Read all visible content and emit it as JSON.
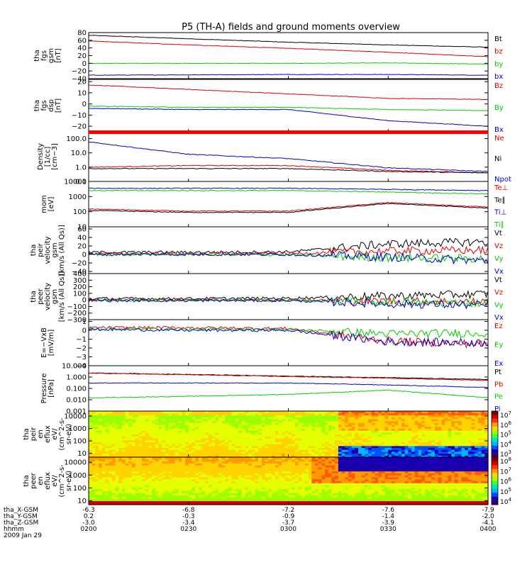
{
  "title": "P5 (TH-A) fields and ground moments overview",
  "colors": {
    "black": "#000000",
    "red": "#e00000",
    "green": "#00cc00",
    "blue": "#0000d0"
  },
  "chart_data": [
    {
      "type": "line",
      "ylabel": [
        "tha",
        "fgs",
        "gsm",
        "[nT]"
      ],
      "yticks": [
        "80",
        "60",
        "40",
        "20",
        "0",
        "−20",
        "−40"
      ],
      "ylim": [
        -40,
        80
      ],
      "legend": [
        "Bt",
        "bz",
        "by",
        "bx"
      ],
      "legend_colors": [
        "#000000",
        "#e00000",
        "#00cc00",
        "#0000d0"
      ],
      "series": [
        {
          "name": "Bt",
          "x": [
            "02:00",
            "02:30",
            "03:00",
            "03:30",
            "04:00"
          ],
          "values": [
            73,
            64,
            55,
            48,
            42
          ]
        },
        {
          "name": "bz",
          "x": [
            "02:00",
            "02:30",
            "03:00",
            "03:30",
            "04:00"
          ],
          "values": [
            58,
            48,
            39,
            29,
            17
          ]
        },
        {
          "name": "by",
          "x": [
            "02:00",
            "02:30",
            "03:00",
            "03:30",
            "04:00"
          ],
          "values": [
            0,
            0,
            0,
            1,
            -2
          ]
        },
        {
          "name": "bx",
          "x": [
            "02:00",
            "02:30",
            "03:00",
            "03:30",
            "04:00"
          ],
          "values": [
            -31,
            -30,
            -29,
            -29,
            -31
          ]
        }
      ]
    },
    {
      "type": "line",
      "ylabel": [
        "tha",
        "fgs",
        "dsp",
        "[nT]"
      ],
      "yticks": [
        "20",
        "10",
        "0",
        "−10",
        "−20"
      ],
      "ylim": [
        -25,
        22
      ],
      "legend": [
        "Bz",
        "By",
        "Bx"
      ],
      "legend_colors": [
        "#e00000",
        "#00cc00",
        "#0000d0"
      ],
      "series": [
        {
          "name": "Bz",
          "x": [
            "02:00",
            "02:30",
            "03:00",
            "03:30",
            "04:00"
          ],
          "values": [
            17,
            13,
            9,
            5,
            4
          ]
        },
        {
          "name": "By",
          "x": [
            "02:00",
            "02:30",
            "03:00",
            "03:30",
            "04:00"
          ],
          "values": [
            -2,
            -3,
            -3,
            -5,
            -6
          ]
        },
        {
          "name": "Bx",
          "x": [
            "02:00",
            "02:30",
            "03:00",
            "03:30",
            "04:00"
          ],
          "values": [
            -4,
            -5,
            -5,
            -15,
            -20
          ]
        }
      ]
    },
    {
      "type": "line",
      "ylabel": [
        "Density",
        "[1/cc]",
        "[cm−3]"
      ],
      "yticks": [
        "100.0",
        "10.0",
        "1.0",
        "0.1"
      ],
      "ylim": [
        0.1,
        300
      ],
      "yscale": "log",
      "legend": [
        "Ne",
        "Ni",
        "Npot"
      ],
      "legend_colors": [
        "#e00000",
        "#000000",
        "#0000d0"
      ],
      "series": [
        {
          "name": "Ne",
          "x": [
            "02:00",
            "02:30",
            "03:00",
            "03:30",
            "04:00"
          ],
          "values": [
            1.0,
            1.3,
            1.3,
            0.6,
            0.4
          ]
        },
        {
          "name": "Ni",
          "x": [
            "02:00",
            "02:30",
            "03:00",
            "03:30",
            "04:00"
          ],
          "values": [
            0.8,
            0.8,
            0.8,
            0.5,
            0.4
          ]
        },
        {
          "name": "Npot",
          "x": [
            "02:00",
            "02:30",
            "03:00",
            "03:30",
            "04:00"
          ],
          "values": [
            60,
            8,
            4,
            0.9,
            0.5
          ]
        }
      ]
    },
    {
      "type": "line",
      "ylabel": [
        "mom",
        "[eV]"
      ],
      "yticks": [
        "10000",
        "1000",
        "100",
        "10"
      ],
      "ylim": [
        10,
        10000
      ],
      "yscale": "log",
      "legend": [
        "Te⊥",
        "Te∥",
        "Ti⊥",
        "Ti∥"
      ],
      "legend_colors": [
        "#e00000",
        "#000000",
        "#0000d0",
        "#00cc00"
      ],
      "series": [
        {
          "name": "Te⊥",
          "x": [
            "02:00",
            "02:30",
            "03:00",
            "03:30",
            "04:00"
          ],
          "values": [
            150,
            110,
            110,
            400,
            200
          ]
        },
        {
          "name": "Te∥",
          "x": [
            "02:00",
            "02:30",
            "03:00",
            "03:30",
            "04:00"
          ],
          "values": [
            120,
            90,
            90,
            350,
            170
          ]
        },
        {
          "name": "Ti⊥",
          "x": [
            "02:00",
            "02:30",
            "03:00",
            "03:30",
            "04:00"
          ],
          "values": [
            3500,
            3500,
            3500,
            3000,
            2500
          ]
        },
        {
          "name": "Ti∥",
          "x": [
            "02:00",
            "02:30",
            "03:00",
            "03:30",
            "04:00"
          ],
          "values": [
            2500,
            2500,
            2500,
            2000,
            1500
          ]
        }
      ]
    },
    {
      "type": "line",
      "ylabel": [
        "tha",
        "peir",
        "velocity",
        "gsm",
        "[km/s (All Qs)]"
      ],
      "yticks": [
        "60",
        "40",
        "20",
        "0",
        "−20",
        "−40"
      ],
      "ylim": [
        -45,
        65
      ],
      "legend": [
        "Vt",
        "Vz",
        "Vy",
        "Vx"
      ],
      "legend_colors": [
        "#000000",
        "#e00000",
        "#00cc00",
        "#0000d0"
      ],
      "series": [
        {
          "name": "Vt",
          "x": [
            "02:00",
            "02:30",
            "03:00",
            "03:30",
            "04:00"
          ],
          "values": [
            5,
            5,
            6,
            25,
            30
          ]
        },
        {
          "name": "Vz",
          "x": [
            "02:00",
            "02:30",
            "03:00",
            "03:30",
            "04:00"
          ],
          "values": [
            2,
            2,
            2,
            8,
            10
          ]
        },
        {
          "name": "Vy",
          "x": [
            "02:00",
            "02:30",
            "03:00",
            "03:30",
            "04:00"
          ],
          "values": [
            0,
            0,
            -1,
            -8,
            -10
          ]
        },
        {
          "name": "Vx",
          "x": [
            "02:00",
            "02:30",
            "03:00",
            "03:30",
            "04:00"
          ],
          "values": [
            0,
            0,
            0,
            -6,
            -15
          ]
        }
      ]
    },
    {
      "type": "line",
      "ylabel": [
        "tha",
        "peer",
        "velocity",
        "gsm",
        "[km/s (All Qs)]"
      ],
      "yticks": [
        "400",
        "300",
        "200",
        "100",
        "0",
        "−100",
        "−200",
        "−300"
      ],
      "ylim": [
        -300,
        400
      ],
      "legend": [
        "Vt",
        "Vz",
        "Vy",
        "Vx"
      ],
      "legend_colors": [
        "#000000",
        "#e00000",
        "#00cc00",
        "#0000d0"
      ],
      "series": [
        {
          "name": "Vt",
          "x": [
            "02:00",
            "02:30",
            "03:00",
            "03:30",
            "04:00"
          ],
          "values": [
            20,
            20,
            25,
            60,
            90
          ]
        },
        {
          "name": "Vz",
          "x": [
            "02:00",
            "02:30",
            "03:00",
            "03:30",
            "04:00"
          ],
          "values": [
            0,
            0,
            0,
            -20,
            -30
          ]
        },
        {
          "name": "Vy",
          "x": [
            "02:00",
            "02:30",
            "03:00",
            "03:30",
            "04:00"
          ],
          "values": [
            -5,
            -5,
            -5,
            -40,
            -50
          ]
        },
        {
          "name": "Vx",
          "x": [
            "02:00",
            "02:30",
            "03:00",
            "03:30",
            "04:00"
          ],
          "values": [
            -10,
            -10,
            -10,
            -60,
            -80
          ]
        }
      ]
    },
    {
      "type": "line",
      "ylabel": [
        "E=−VxB",
        "[mV/m]"
      ],
      "yticks": [
        "1",
        "0",
        "−1",
        "−2",
        "−3",
        "−4"
      ],
      "ylim": [
        -4,
        1.2
      ],
      "legend": [
        "Ez",
        "Ey",
        "Ex"
      ],
      "legend_colors": [
        "#e00000",
        "#00cc00",
        "#0000d0"
      ],
      "series": [
        {
          "name": "Ez",
          "x": [
            "02:00",
            "02:30",
            "03:00",
            "03:30",
            "04:00"
          ],
          "values": [
            0.3,
            0.3,
            0.2,
            -1.2,
            -1.6
          ]
        },
        {
          "name": "Ey",
          "x": [
            "02:00",
            "02:30",
            "03:00",
            "03:30",
            "04:00"
          ],
          "values": [
            0.2,
            0.1,
            0.1,
            -0.4,
            -0.3
          ]
        },
        {
          "name": "Ex",
          "x": [
            "02:00",
            "02:30",
            "03:00",
            "03:30",
            "04:00"
          ],
          "values": [
            0.1,
            0.0,
            0.0,
            -1.3,
            -1.4
          ]
        }
      ]
    },
    {
      "type": "line",
      "ylabel": [
        "Pressure",
        "[nPa]"
      ],
      "yticks": [
        "10.000",
        "1.000",
        "0.100",
        "0.010",
        "0.001"
      ],
      "ylim": [
        0.001,
        10
      ],
      "yscale": "log",
      "legend": [
        "Pt",
        "Pb",
        "Pe",
        "Pi"
      ],
      "legend_colors": [
        "#000000",
        "#e00000",
        "#00cc00",
        "#0000d0"
      ],
      "series": [
        {
          "name": "Pt",
          "x": [
            "02:00",
            "02:30",
            "03:00",
            "03:30",
            "04:00"
          ],
          "values": [
            2.3,
            1.7,
            1.2,
            0.9,
            0.6
          ]
        },
        {
          "name": "Pb",
          "x": [
            "02:00",
            "02:30",
            "03:00",
            "03:30",
            "04:00"
          ],
          "values": [
            2.2,
            1.6,
            1.1,
            0.8,
            0.5
          ]
        },
        {
          "name": "Pe",
          "x": [
            "02:00",
            "02:30",
            "03:00",
            "03:30",
            "04:00"
          ],
          "values": [
            0.015,
            0.02,
            0.03,
            0.07,
            0.015
          ]
        },
        {
          "name": "Pi",
          "x": [
            "02:00",
            "02:30",
            "03:00",
            "03:30",
            "04:00"
          ],
          "values": [
            0.3,
            0.3,
            0.3,
            0.2,
            0.12
          ]
        }
      ]
    },
    {
      "type": "heatmap",
      "ylabel": [
        "tha",
        "peir",
        "en",
        "eflux",
        "eV/",
        "(cm^2-s-",
        "sr-eV)"
      ],
      "yticks": [
        "10000",
        "1000",
        "100",
        "10"
      ],
      "ylim": [
        5,
        25000
      ],
      "yscale": "log",
      "colorbar_labels": [
        "10^7",
        "10^6",
        "10^5",
        "10^4",
        "10^3"
      ]
    },
    {
      "type": "heatmap",
      "ylabel": [
        "tha",
        "peer",
        "en",
        "eflux",
        "eV/",
        "(cm^2-s-",
        "sr-eV)"
      ],
      "yticks": [
        "10000",
        "1000",
        "100",
        "10"
      ],
      "ylim": [
        5,
        25000
      ],
      "yscale": "log",
      "colorbar_labels": [
        "10^8",
        "10^7",
        "10^6",
        "10^5",
        "10^4"
      ]
    }
  ],
  "x_axis": {
    "tick_labels": [
      "0200",
      "0230",
      "0300",
      "0330",
      "0400"
    ],
    "rows": [
      {
        "label": "tha_X-GSM",
        "values": [
          "-6.3",
          "-6.8",
          "-7.2",
          "-7.6",
          "-7.9"
        ]
      },
      {
        "label": "tha_Y-GSM",
        "values": [
          "0.2",
          "-0.3",
          "-0.9",
          "-1.4",
          "-2.0"
        ]
      },
      {
        "label": "tha_Z-GSM",
        "values": [
          "-3.0",
          "-3.4",
          "-3.7",
          "-3.9",
          "-4.1"
        ]
      },
      {
        "label": "hhmm",
        "values": []
      }
    ],
    "date": "2009 Jan 29"
  }
}
